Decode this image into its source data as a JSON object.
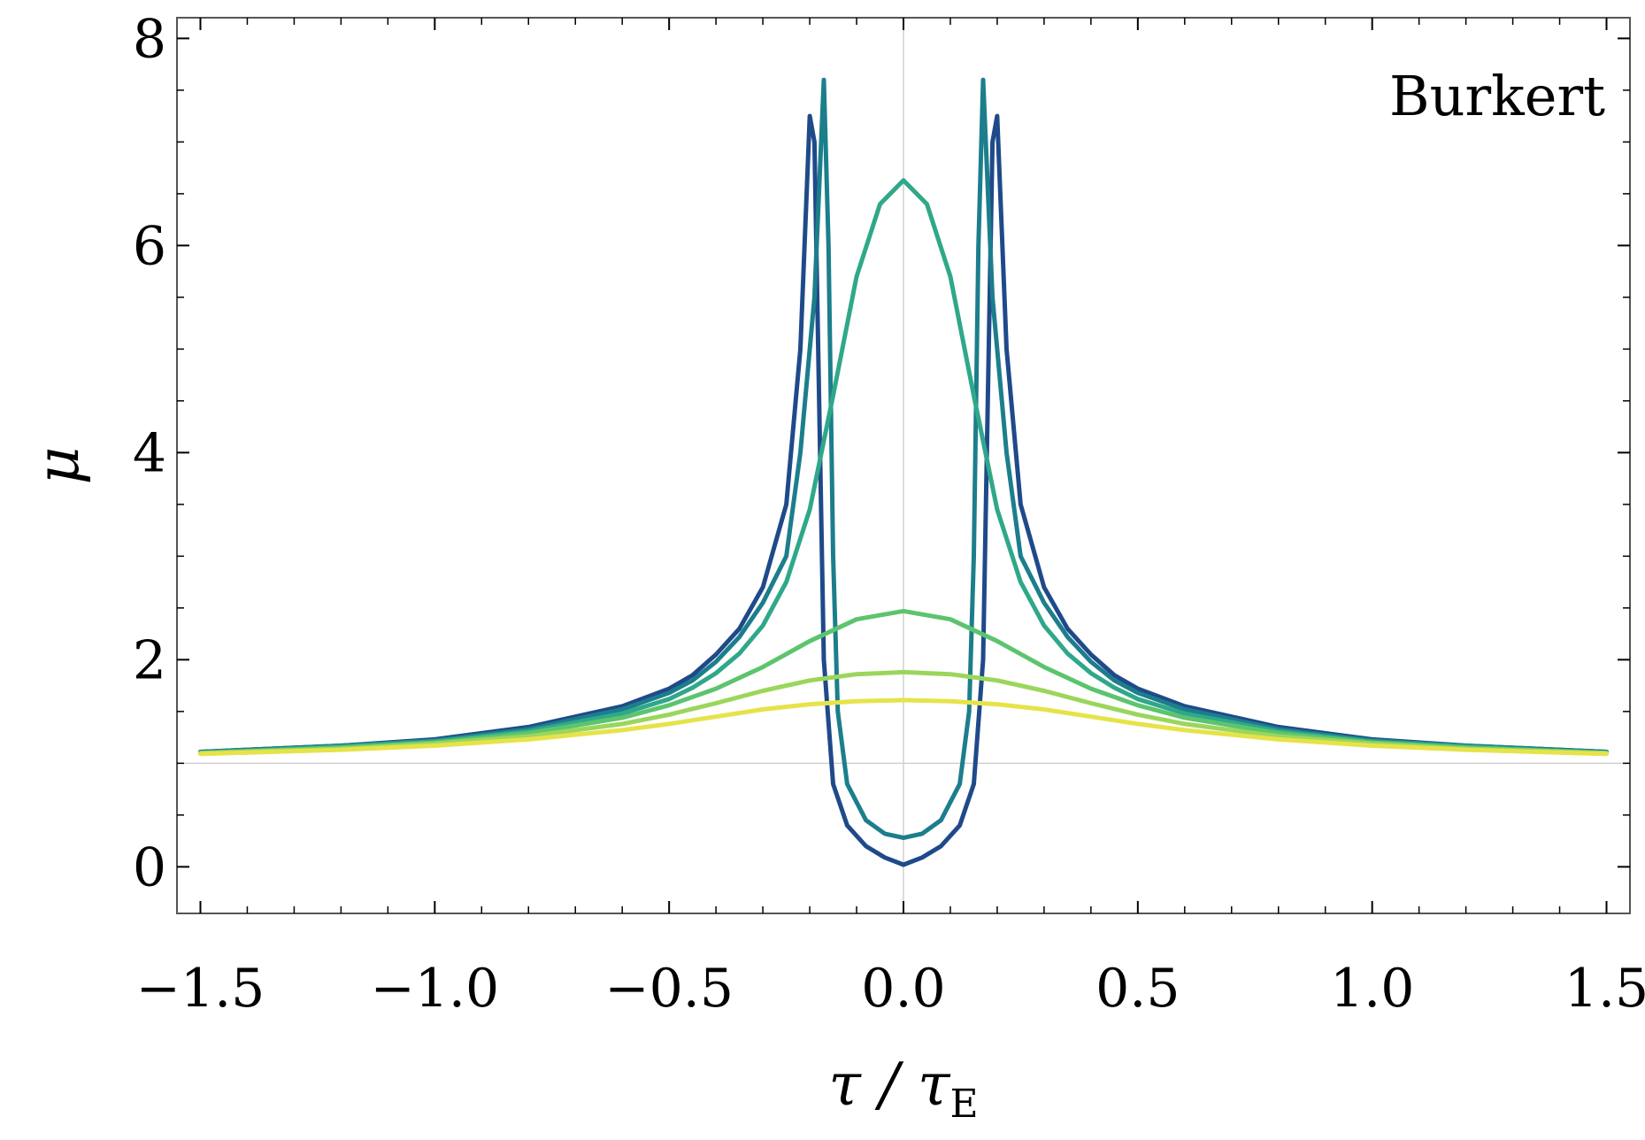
{
  "chart_data": {
    "type": "line",
    "title": "",
    "xlabel": "τ / τ_E",
    "ylabel": "μ",
    "xlim": [
      -1.55,
      1.55
    ],
    "ylim": [
      -0.45,
      8.2
    ],
    "grid": false,
    "reference_lines": {
      "x": 0,
      "y": 1
    },
    "annotation": "Burkert",
    "x_ticks": [
      {
        "value": -1.5,
        "label": "−1.5"
      },
      {
        "value": -1.0,
        "label": "−1.0"
      },
      {
        "value": -0.5,
        "label": "−0.5"
      },
      {
        "value": 0.0,
        "label": "0.0"
      },
      {
        "value": 0.5,
        "label": "0.5"
      },
      {
        "value": 1.0,
        "label": "1.0"
      },
      {
        "value": 1.5,
        "label": "1.5"
      }
    ],
    "y_ticks": [
      {
        "value": 0,
        "label": "0"
      },
      {
        "value": 2,
        "label": "2"
      },
      {
        "value": 4,
        "label": "4"
      },
      {
        "value": 6,
        "label": "6"
      },
      {
        "value": 8,
        "label": "8"
      }
    ],
    "series": [
      {
        "color": "#1f4a8a",
        "points": [
          [
            -1.5,
            1.11
          ],
          [
            -1.2,
            1.17
          ],
          [
            -1.0,
            1.23
          ],
          [
            -0.8,
            1.35
          ],
          [
            -0.6,
            1.55
          ],
          [
            -0.5,
            1.72
          ],
          [
            -0.45,
            1.85
          ],
          [
            -0.4,
            2.05
          ],
          [
            -0.35,
            2.3
          ],
          [
            -0.3,
            2.7
          ],
          [
            -0.25,
            3.5
          ],
          [
            -0.22,
            5.0
          ],
          [
            -0.2,
            7.25
          ],
          [
            -0.19,
            7.0
          ],
          [
            -0.18,
            4.5
          ],
          [
            -0.17,
            2.0
          ],
          [
            -0.15,
            0.8
          ],
          [
            -0.12,
            0.4
          ],
          [
            -0.08,
            0.2
          ],
          [
            -0.04,
            0.09
          ],
          [
            0.0,
            0.02
          ],
          [
            0.04,
            0.09
          ],
          [
            0.08,
            0.2
          ],
          [
            0.12,
            0.4
          ],
          [
            0.15,
            0.8
          ],
          [
            0.17,
            2.0
          ],
          [
            0.18,
            4.5
          ],
          [
            0.19,
            7.0
          ],
          [
            0.2,
            7.25
          ],
          [
            0.22,
            5.0
          ],
          [
            0.25,
            3.5
          ],
          [
            0.3,
            2.7
          ],
          [
            0.35,
            2.3
          ],
          [
            0.4,
            2.05
          ],
          [
            0.45,
            1.85
          ],
          [
            0.5,
            1.72
          ],
          [
            0.6,
            1.55
          ],
          [
            0.8,
            1.35
          ],
          [
            1.0,
            1.23
          ],
          [
            1.2,
            1.17
          ],
          [
            1.5,
            1.11
          ]
        ]
      },
      {
        "color": "#1c7e8c",
        "points": [
          [
            -1.5,
            1.11
          ],
          [
            -1.2,
            1.17
          ],
          [
            -1.0,
            1.22
          ],
          [
            -0.8,
            1.33
          ],
          [
            -0.6,
            1.52
          ],
          [
            -0.5,
            1.68
          ],
          [
            -0.45,
            1.8
          ],
          [
            -0.4,
            1.98
          ],
          [
            -0.35,
            2.22
          ],
          [
            -0.3,
            2.55
          ],
          [
            -0.25,
            3.0
          ],
          [
            -0.22,
            4.0
          ],
          [
            -0.19,
            5.5
          ],
          [
            -0.17,
            7.6
          ],
          [
            -0.16,
            6.0
          ],
          [
            -0.15,
            3.0
          ],
          [
            -0.14,
            1.5
          ],
          [
            -0.12,
            0.8
          ],
          [
            -0.08,
            0.45
          ],
          [
            -0.04,
            0.32
          ],
          [
            0.0,
            0.28
          ],
          [
            0.04,
            0.32
          ],
          [
            0.08,
            0.45
          ],
          [
            0.12,
            0.8
          ],
          [
            0.14,
            1.5
          ],
          [
            0.15,
            3.0
          ],
          [
            0.16,
            6.0
          ],
          [
            0.17,
            7.6
          ],
          [
            0.19,
            5.5
          ],
          [
            0.22,
            4.0
          ],
          [
            0.25,
            3.0
          ],
          [
            0.3,
            2.55
          ],
          [
            0.35,
            2.22
          ],
          [
            0.4,
            1.98
          ],
          [
            0.45,
            1.8
          ],
          [
            0.5,
            1.68
          ],
          [
            0.6,
            1.52
          ],
          [
            0.8,
            1.33
          ],
          [
            1.0,
            1.22
          ],
          [
            1.2,
            1.17
          ],
          [
            1.5,
            1.11
          ]
        ]
      },
      {
        "color": "#2fa88a",
        "points": [
          [
            -1.5,
            1.1
          ],
          [
            -1.2,
            1.16
          ],
          [
            -1.0,
            1.21
          ],
          [
            -0.8,
            1.31
          ],
          [
            -0.6,
            1.48
          ],
          [
            -0.5,
            1.62
          ],
          [
            -0.45,
            1.73
          ],
          [
            -0.4,
            1.87
          ],
          [
            -0.35,
            2.06
          ],
          [
            -0.3,
            2.33
          ],
          [
            -0.25,
            2.75
          ],
          [
            -0.2,
            3.45
          ],
          [
            -0.15,
            4.55
          ],
          [
            -0.1,
            5.7
          ],
          [
            -0.05,
            6.4
          ],
          [
            0.0,
            6.63
          ],
          [
            0.05,
            6.4
          ],
          [
            0.1,
            5.7
          ],
          [
            0.15,
            4.55
          ],
          [
            0.2,
            3.45
          ],
          [
            0.25,
            2.75
          ],
          [
            0.3,
            2.33
          ],
          [
            0.35,
            2.06
          ],
          [
            0.4,
            1.87
          ],
          [
            0.45,
            1.73
          ],
          [
            0.5,
            1.62
          ],
          [
            0.6,
            1.48
          ],
          [
            0.8,
            1.31
          ],
          [
            1.0,
            1.21
          ],
          [
            1.2,
            1.16
          ],
          [
            1.5,
            1.1
          ]
        ]
      },
      {
        "color": "#5cc46e",
        "points": [
          [
            -1.5,
            1.1
          ],
          [
            -1.2,
            1.15
          ],
          [
            -1.0,
            1.2
          ],
          [
            -0.8,
            1.29
          ],
          [
            -0.6,
            1.44
          ],
          [
            -0.5,
            1.56
          ],
          [
            -0.4,
            1.72
          ],
          [
            -0.3,
            1.93
          ],
          [
            -0.2,
            2.18
          ],
          [
            -0.1,
            2.39
          ],
          [
            0.0,
            2.47
          ],
          [
            0.1,
            2.39
          ],
          [
            0.2,
            2.18
          ],
          [
            0.3,
            1.93
          ],
          [
            0.4,
            1.72
          ],
          [
            0.5,
            1.56
          ],
          [
            0.6,
            1.44
          ],
          [
            0.8,
            1.29
          ],
          [
            1.0,
            1.2
          ],
          [
            1.2,
            1.15
          ],
          [
            1.5,
            1.1
          ]
        ]
      },
      {
        "color": "#9bd65c",
        "points": [
          [
            -1.5,
            1.1
          ],
          [
            -1.2,
            1.14
          ],
          [
            -1.0,
            1.19
          ],
          [
            -0.8,
            1.26
          ],
          [
            -0.6,
            1.38
          ],
          [
            -0.5,
            1.47
          ],
          [
            -0.4,
            1.58
          ],
          [
            -0.3,
            1.7
          ],
          [
            -0.2,
            1.8
          ],
          [
            -0.1,
            1.86
          ],
          [
            0.0,
            1.88
          ],
          [
            0.1,
            1.86
          ],
          [
            0.2,
            1.8
          ],
          [
            0.3,
            1.7
          ],
          [
            0.4,
            1.58
          ],
          [
            0.5,
            1.47
          ],
          [
            0.6,
            1.38
          ],
          [
            0.8,
            1.26
          ],
          [
            1.0,
            1.19
          ],
          [
            1.2,
            1.14
          ],
          [
            1.5,
            1.1
          ]
        ]
      },
      {
        "color": "#e6e34a",
        "points": [
          [
            -1.5,
            1.09
          ],
          [
            -1.2,
            1.13
          ],
          [
            -1.0,
            1.17
          ],
          [
            -0.8,
            1.23
          ],
          [
            -0.6,
            1.32
          ],
          [
            -0.5,
            1.38
          ],
          [
            -0.4,
            1.45
          ],
          [
            -0.3,
            1.52
          ],
          [
            -0.2,
            1.57
          ],
          [
            -0.1,
            1.6
          ],
          [
            0.0,
            1.61
          ],
          [
            0.1,
            1.6
          ],
          [
            0.2,
            1.57
          ],
          [
            0.3,
            1.52
          ],
          [
            0.4,
            1.45
          ],
          [
            0.5,
            1.38
          ],
          [
            0.6,
            1.32
          ],
          [
            0.8,
            1.23
          ],
          [
            1.0,
            1.17
          ],
          [
            1.2,
            1.13
          ],
          [
            1.5,
            1.09
          ]
        ]
      }
    ]
  }
}
